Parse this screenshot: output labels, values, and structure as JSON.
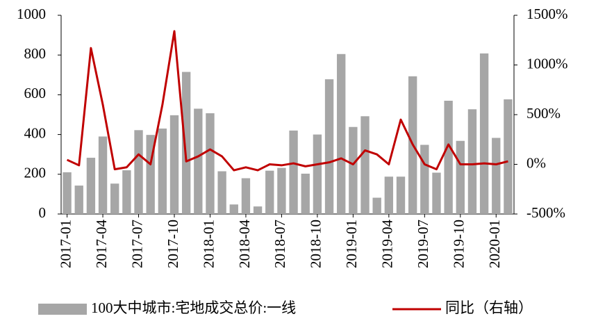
{
  "chart_data": {
    "type": "bar_line",
    "categories": [
      "2017-01",
      null,
      null,
      "2017-04",
      null,
      null,
      "2017-07",
      null,
      null,
      "2017-10",
      null,
      null,
      "2018-01",
      null,
      null,
      "2018-04",
      null,
      null,
      "2018-07",
      null,
      null,
      "2018-10",
      null,
      null,
      "2019-01",
      null,
      null,
      "2019-04",
      null,
      null,
      "2019-07",
      null,
      null,
      "2019-10",
      null,
      null,
      "2020-01",
      null
    ],
    "series": [
      {
        "name": "100大中城市:宅地成交总价:一线",
        "type": "bar",
        "color": "#a6a6a6",
        "axis": "y",
        "values": [
          210,
          143,
          283,
          390,
          153,
          220,
          422,
          398,
          430,
          497,
          715,
          530,
          507,
          215,
          48,
          180,
          38,
          218,
          232,
          420,
          203,
          400,
          678,
          805,
          438,
          492,
          82,
          188,
          188,
          693,
          348,
          208,
          570,
          368,
          527,
          808,
          383,
          577
        ]
      },
      {
        "name": "同比（右轴）",
        "type": "line",
        "color": "#c00000",
        "axis": "y2",
        "values": [
          45,
          -10,
          1170,
          600,
          -50,
          -30,
          100,
          0,
          600,
          1340,
          30,
          80,
          150,
          80,
          -60,
          -30,
          -60,
          0,
          -10,
          10,
          -20,
          0,
          20,
          60,
          0,
          140,
          100,
          0,
          450,
          200,
          0,
          -50,
          200,
          0,
          0,
          10,
          0,
          30
        ]
      }
    ],
    "ylim": [
      0,
      1000
    ],
    "yticks": [
      0,
      200,
      400,
      600,
      800,
      1000
    ],
    "y2lim": [
      -500,
      1500
    ],
    "y2ticks": [
      {
        "value": -500,
        "label": "-500%"
      },
      {
        "value": 0,
        "label": "0%"
      },
      {
        "value": 500,
        "label": "500%"
      },
      {
        "value": 1000,
        "label": "1000%"
      },
      {
        "value": 1500,
        "label": "1500%"
      }
    ],
    "legend": "bottom"
  }
}
